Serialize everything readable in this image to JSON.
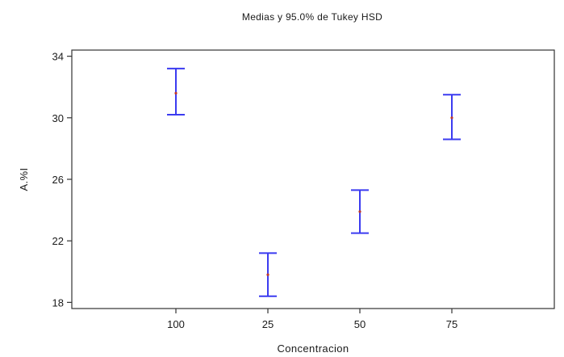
{
  "chart_data": {
    "type": "error_bar",
    "title": "Medias y 95.0% de Tukey HSD",
    "xlabel": "Concentracion",
    "ylabel": "A.%I",
    "categories": [
      "100",
      "25",
      "50",
      "75"
    ],
    "means": [
      31.6,
      19.8,
      23.9,
      30.0
    ],
    "lower": [
      30.2,
      18.4,
      22.5,
      28.6
    ],
    "upper": [
      33.2,
      21.2,
      25.3,
      31.5
    ],
    "ylim": [
      17.6,
      34.4
    ],
    "yticks": [
      18,
      22,
      26,
      30,
      34
    ],
    "grid": false,
    "colors": {
      "error_bar": "#3b3bf0",
      "mean_point": "#c0392b"
    }
  }
}
